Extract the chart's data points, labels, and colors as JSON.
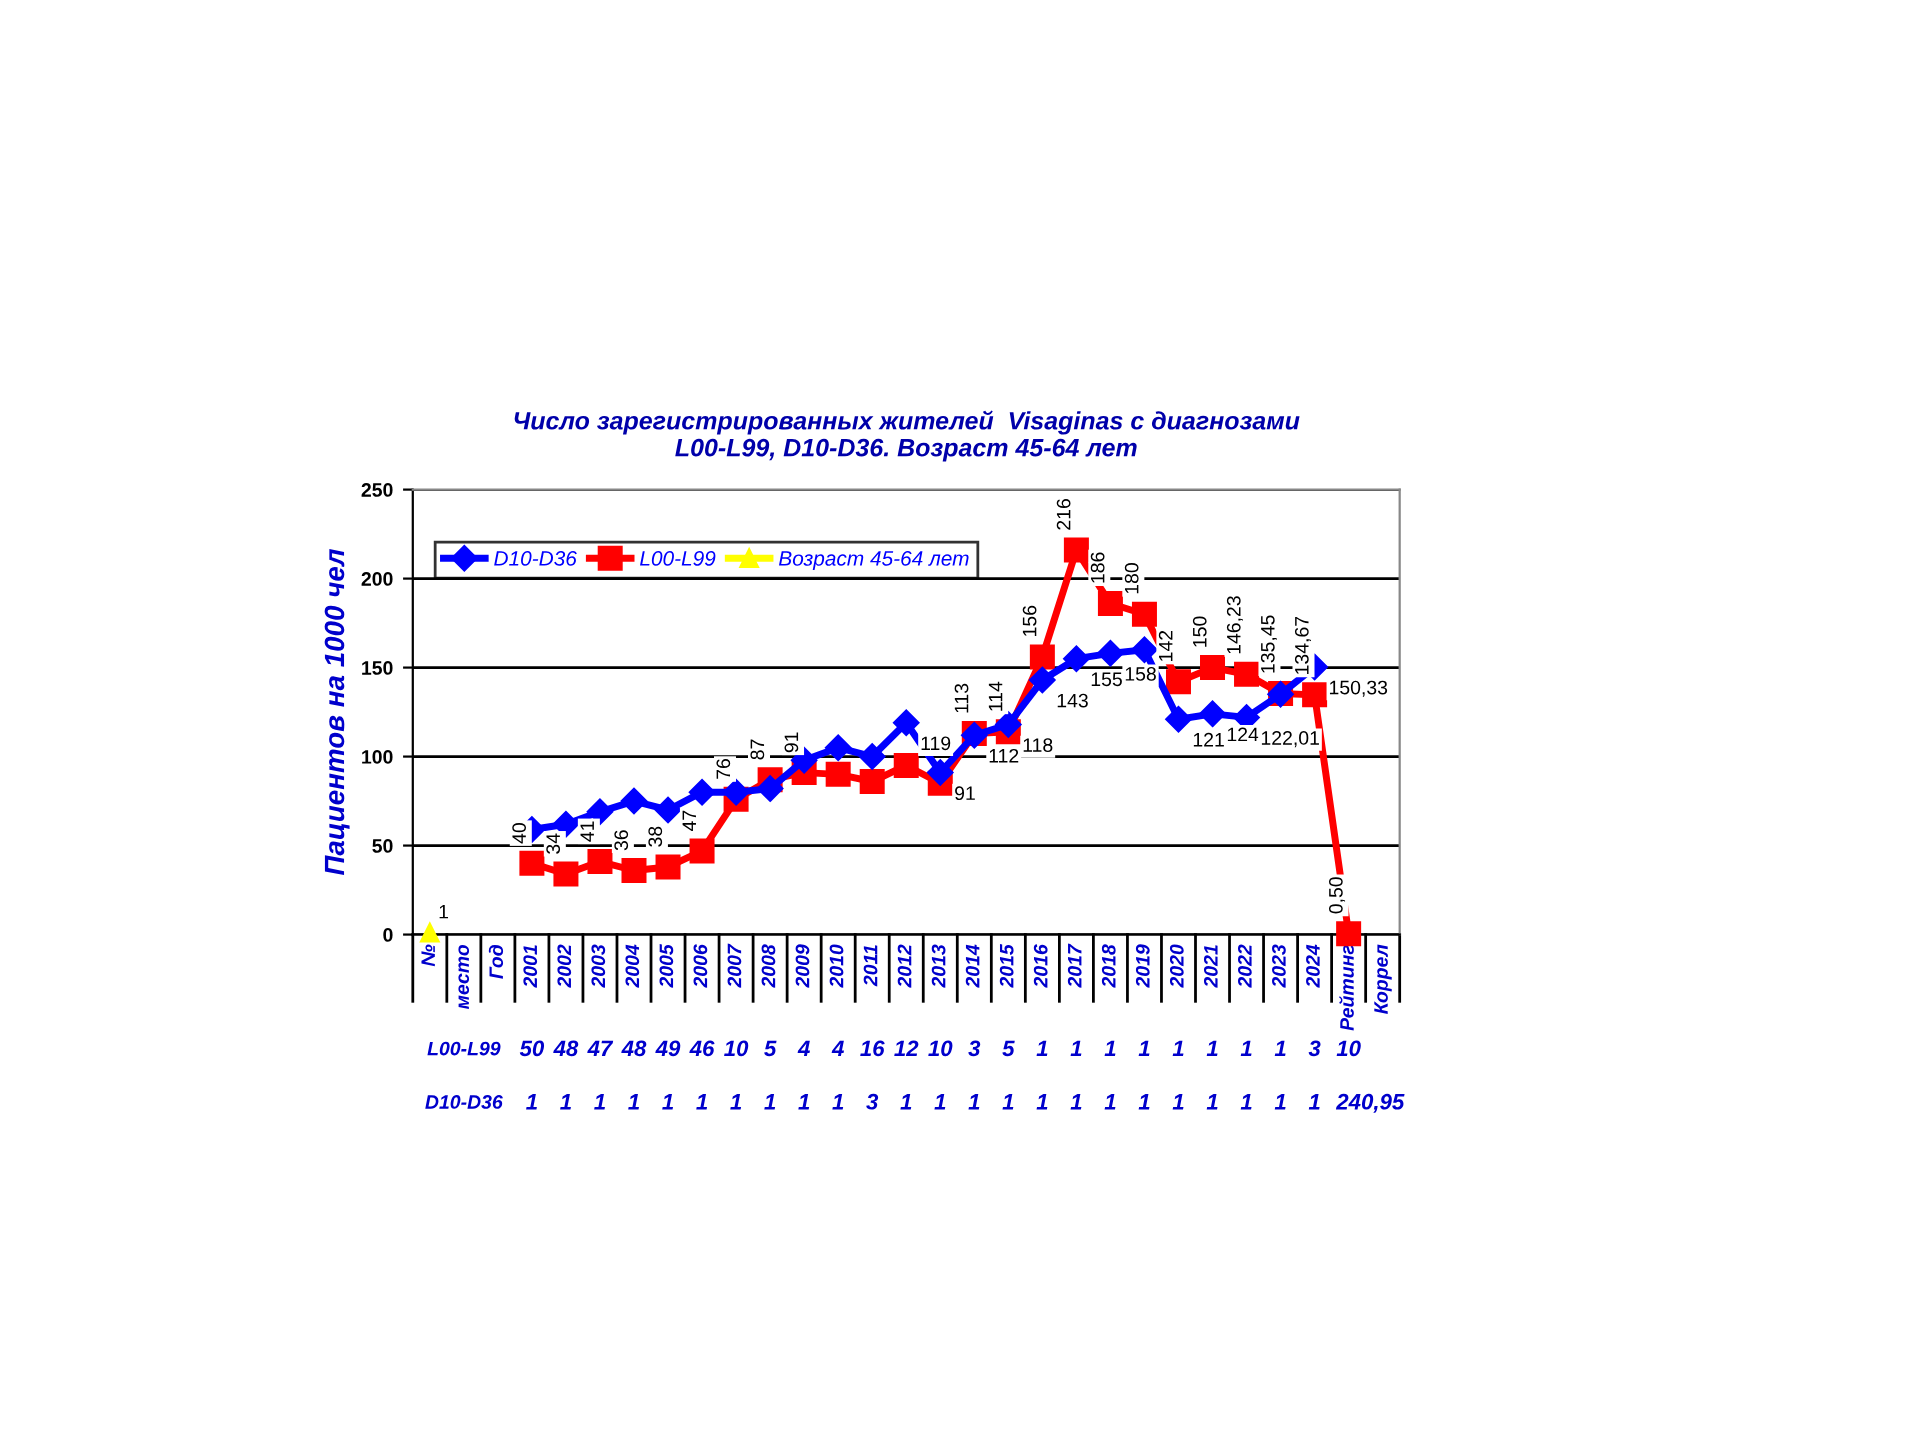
{
  "chart_data": {
    "type": "line",
    "title": "Число зарегистрированных жителей  Visaginas с диагнозами\nL00-L99, D10-D36. Возраст 45-64 лет",
    "ylabel": "Пациентов на 1000 чел",
    "categories": [
      "№",
      "место",
      "Год",
      "2001",
      "2002",
      "2003",
      "2004",
      "2005",
      "2006",
      "2007",
      "2008",
      "2009",
      "2010",
      "2011",
      "2012",
      "2013",
      "2014",
      "2015",
      "2016",
      "2017",
      "2018",
      "2019",
      "2020",
      "2021",
      "2022",
      "2023",
      "2024",
      "Рейтинг",
      "Коррел"
    ],
    "ylim": [
      0,
      250
    ],
    "yticks": [
      0,
      50,
      100,
      150,
      200,
      250
    ],
    "grid": "y",
    "legend": "top left",
    "line_style": "solid",
    "series": [
      {
        "name": "D10-D36",
        "color": "#0000ff",
        "marker": "diamond",
        "values": [
          null,
          null,
          null,
          59,
          62,
          69,
          75,
          70,
          80,
          80,
          82,
          98,
          105,
          100,
          119,
          91,
          112,
          118,
          143,
          155,
          158,
          160,
          121,
          124,
          122.01,
          135,
          150.33,
          null,
          null
        ],
        "value_labels": [
          null,
          null,
          null,
          null,
          null,
          null,
          null,
          null,
          null,
          null,
          null,
          null,
          null,
          null,
          "119",
          "91",
          "112",
          "118",
          "143",
          "155",
          "158",
          null,
          "121",
          "124",
          "122,01",
          null,
          "150,33",
          null,
          null
        ]
      },
      {
        "name": "L00-L99",
        "color": "#ff0000",
        "marker": "square",
        "values": [
          null,
          null,
          null,
          40,
          34,
          41,
          36,
          38,
          47,
          76,
          87,
          91,
          90,
          86,
          95,
          85,
          113,
          114,
          156,
          216,
          186,
          180,
          142,
          150,
          146.23,
          135.45,
          134.67,
          0.5,
          null
        ],
        "value_labels": [
          null,
          null,
          null,
          "40",
          "34",
          "41",
          "36",
          "38",
          "47",
          "76",
          "87",
          "91",
          null,
          null,
          null,
          null,
          "113",
          "114",
          "156",
          "216",
          "186",
          "180",
          "142",
          "150",
          "146,23",
          "135,45",
          "134,67",
          "0,50",
          null
        ]
      },
      {
        "name": "Возраст 45-64 лет",
        "color": "#ffff00",
        "marker": "triangle",
        "values": [
          1,
          null,
          null,
          null,
          null,
          null,
          null,
          null,
          null,
          null,
          null,
          null,
          null,
          null,
          null,
          null,
          null,
          null,
          null,
          null,
          null,
          null,
          null,
          null,
          null,
          null,
          null,
          null,
          null
        ],
        "value_labels": [
          "1",
          null,
          null,
          null,
          null,
          null,
          null,
          null,
          null,
          null,
          null,
          null,
          null,
          null,
          null,
          null,
          null,
          null,
          null,
          null,
          null,
          null,
          null,
          null,
          null,
          null,
          null,
          null,
          null
        ]
      }
    ],
    "annotations": [
      "L00-L99",
      "50",
      "48",
      "47",
      "48",
      "49",
      "46",
      "10",
      "5",
      "4",
      "4",
      "16",
      "12",
      "10",
      "3",
      "5",
      "1",
      "1",
      "1",
      "1",
      "1",
      "1",
      "1",
      "1",
      "3",
      "10",
      "D10-D36",
      "1",
      "1",
      "1",
      "1",
      "1",
      "1",
      "1",
      "1",
      "1",
      "1",
      "3",
      "1",
      "1",
      "1",
      "1",
      "1",
      "1",
      "1",
      "1",
      "1",
      "1",
      "1",
      "1",
      "1",
      "24",
      "0,95"
    ]
  }
}
